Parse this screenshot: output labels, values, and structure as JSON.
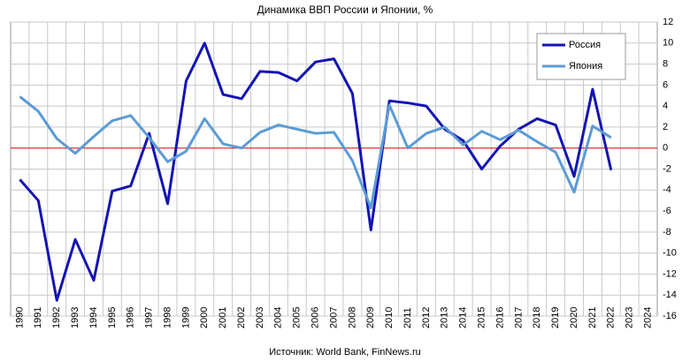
{
  "chart_data": {
    "type": "line",
    "title": "Динамика ВВП России и Японии, %",
    "source": "Источник: World Bank, FinNews.ru",
    "categories": [
      "1990",
      "1991",
      "1992",
      "1993",
      "1994",
      "1995",
      "1996",
      "1997",
      "1998",
      "1999",
      "2000",
      "2001",
      "2002",
      "2003",
      "2004",
      "2005",
      "2006",
      "2007",
      "2008",
      "2009",
      "2010",
      "2011",
      "2012",
      "2013",
      "2014",
      "2015",
      "2016",
      "2017",
      "2018",
      "2019",
      "2020",
      "2021",
      "2022",
      "2023",
      "2024"
    ],
    "series": [
      {
        "name": "Россия",
        "color": "#1414b4",
        "values": [
          -3.0,
          -5.0,
          -14.5,
          -8.7,
          -12.6,
          -4.1,
          -3.6,
          1.4,
          -5.3,
          6.4,
          10.0,
          5.1,
          4.7,
          7.3,
          7.2,
          6.4,
          8.2,
          8.5,
          5.2,
          -7.8,
          4.5,
          4.3,
          4.0,
          1.8,
          0.7,
          -2.0,
          0.2,
          1.8,
          2.8,
          2.2,
          -2.7,
          5.6,
          -2.1,
          null,
          null
        ]
      },
      {
        "name": "Япония",
        "color": "#5b9bd5",
        "values": [
          4.9,
          3.5,
          0.9,
          -0.5,
          1.1,
          2.6,
          3.1,
          1.0,
          -1.3,
          -0.3,
          2.8,
          0.4,
          0.0,
          1.5,
          2.2,
          1.8,
          1.4,
          1.5,
          -1.2,
          -5.7,
          4.1,
          0.0,
          1.4,
          2.0,
          0.3,
          1.6,
          0.8,
          1.7,
          0.6,
          -0.4,
          -4.2,
          2.1,
          1.0,
          null,
          null
        ]
      }
    ],
    "ylim": [
      -16,
      12
    ],
    "yticks": [
      -16,
      -14,
      -12,
      -10,
      -8,
      -6,
      -4,
      -2,
      0,
      2,
      4,
      6,
      8,
      10,
      12
    ],
    "grid": true,
    "zero_line_color": "#e00000",
    "legend": "upper right"
  }
}
